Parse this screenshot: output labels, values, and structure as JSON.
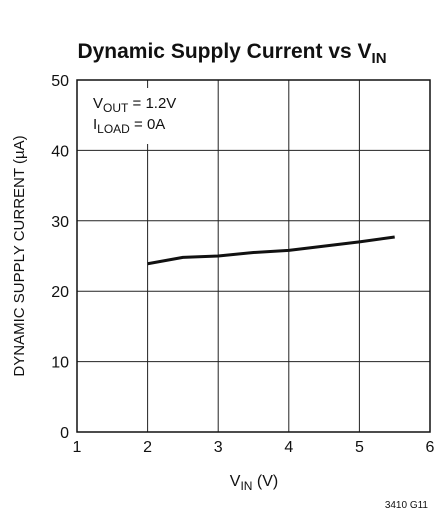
{
  "chart_data": {
    "type": "line",
    "title": {
      "text": "Dynamic Supply Current vs V",
      "sub": "IN"
    },
    "xlabel": {
      "text": "V",
      "sub": "IN",
      "rest": " (V)"
    },
    "ylabel": "DYNAMIC SUPPLY CURRENT (µA)",
    "annotations": [
      {
        "text": "V",
        "sub": "OUT",
        "rest": " = 1.2V"
      },
      {
        "text": "I",
        "sub": "LOAD",
        "rest": " = 0A"
      }
    ],
    "footnote": "3410 G11",
    "x": [
      2,
      2.5,
      3,
      3.5,
      4,
      4.5,
      5,
      5.5
    ],
    "values": [
      23.9,
      24.8,
      25.0,
      25.5,
      25.8,
      26.4,
      27.0,
      27.7
    ],
    "color": "#111111",
    "xlim": [
      1,
      6
    ],
    "xticks": [
      1,
      2,
      3,
      4,
      5,
      6
    ],
    "ylim": [
      0,
      50
    ],
    "yticks": [
      0,
      10,
      20,
      30,
      40,
      50
    ],
    "grid": true
  }
}
